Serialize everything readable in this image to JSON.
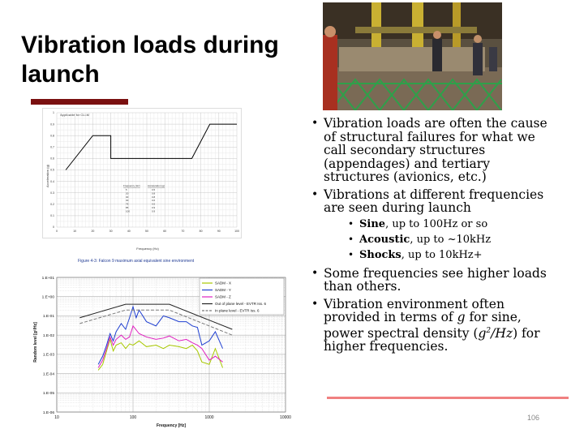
{
  "slide": {
    "title": "Vibration loads during launch",
    "page_number": "106"
  },
  "bullets": [
    {
      "text": "Vibration loads are often the cause of structural failures for what we call secondary structures (appendages) and tertiary structures (avionics, etc.)"
    },
    {
      "text": "Vibrations at different frequencies are seen during launch",
      "sub": [
        {
          "bold": "Sine",
          "rest": ", up to 100Hz or so"
        },
        {
          "bold": "Acoustic",
          "rest": ", up to ~10kHz"
        },
        {
          "bold": "Shocks",
          "rest": ", up to 10kHz+"
        }
      ]
    },
    {
      "text": "Some frequencies see higher loads than others."
    },
    {
      "pre": "Vibration environment often provided in terms of ",
      "g": "g",
      "mid": " for sine, power spectral density (",
      "psd_g": "g",
      "psd_sup": "2",
      "psd_rest": "/Hz",
      "post": ") for higher frequencies."
    }
  ],
  "figure1": {
    "caption": "Figure 4-3: Falcon 9 maximum axial equivalent sine environment",
    "chart_data": {
      "type": "line",
      "annotation": "Applicable for CLLM",
      "xlabel": "Frequency (Hz)",
      "ylabel": "Acceleration (g)",
      "x_ticks": [
        "0",
        "10",
        "20",
        "30",
        "40",
        "50",
        "60",
        "70",
        "80",
        "90",
        "100"
      ],
      "y_ticks": [
        "0",
        "0.1",
        "0.2",
        "0.3",
        "0.4",
        "0.5",
        "0.6",
        "0.7",
        "0.8",
        "0.9",
        "1"
      ],
      "xlim": [
        0,
        100
      ],
      "ylim": [
        0,
        1
      ],
      "series": [
        {
          "x": [
            5,
            20,
            30,
            30,
            75,
            85,
            100
          ],
          "y": [
            0.5,
            0.8,
            0.8,
            0.6,
            0.6,
            0.9,
            0.9
          ]
        }
      ],
      "table": {
        "headers": [
          "Frequency (Hz)",
          "Acceleration (g)"
        ],
        "rows": [
          [
            "5",
            "0.5"
          ],
          [
            "20",
            "0.8"
          ],
          [
            "30",
            "0.8"
          ],
          [
            "30",
            "0.6"
          ],
          [
            "75",
            "0.6"
          ],
          [
            "85",
            "0.9"
          ],
          [
            "100",
            "0.9"
          ]
        ]
      }
    }
  },
  "figure2": {
    "chart_data": {
      "type": "line",
      "xlabel": "Frequency [Hz]",
      "ylabel": "Random level [g²/Hz]",
      "x_scale": "log",
      "y_scale": "log",
      "xlim": [
        10,
        10000
      ],
      "ylim": [
        1e-06,
        10
      ],
      "x_ticks": [
        "10",
        "100",
        "1000",
        "10000"
      ],
      "y_ticks": [
        "1.E+01",
        "1.E+00",
        "1.E-01",
        "1.E-02",
        "1.E-03",
        "1.E-04",
        "1.E-05",
        "1.E-06"
      ],
      "legend_position": "top-right",
      "series": [
        {
          "name": "SADM - X",
          "color": "#a8c800",
          "style": "solid",
          "x": [
            35,
            40,
            45,
            50,
            55,
            60,
            70,
            80,
            90,
            100,
            120,
            150,
            200,
            250,
            300,
            400,
            500,
            600,
            700,
            800,
            1000,
            1200,
            1500
          ],
          "y": [
            0.00015,
            0.0003,
            0.0015,
            0.006,
            0.0015,
            0.003,
            0.004,
            0.002,
            0.0035,
            0.003,
            0.005,
            0.0025,
            0.003,
            0.002,
            0.003,
            0.0025,
            0.002,
            0.003,
            0.0015,
            0.0004,
            0.0003,
            0.002,
            0.0002
          ]
        },
        {
          "name": "SADM - Y",
          "color": "#1f3fd0",
          "style": "solid",
          "x": [
            35,
            40,
            45,
            50,
            55,
            60,
            70,
            80,
            90,
            100,
            110,
            120,
            150,
            200,
            250,
            300,
            400,
            500,
            600,
            700,
            800,
            1000,
            1200,
            1500
          ],
          "y": [
            0.0003,
            0.0008,
            0.003,
            0.012,
            0.005,
            0.015,
            0.04,
            0.02,
            0.08,
            0.3,
            0.08,
            0.2,
            0.05,
            0.03,
            0.1,
            0.08,
            0.05,
            0.05,
            0.03,
            0.025,
            0.003,
            0.005,
            0.015,
            0.002
          ]
        },
        {
          "name": "SADM - Z",
          "color": "#e020c0",
          "style": "solid",
          "x": [
            35,
            40,
            45,
            50,
            55,
            60,
            70,
            80,
            90,
            100,
            120,
            150,
            200,
            250,
            300,
            400,
            500,
            600,
            700,
            800,
            1000,
            1200,
            1500
          ],
          "y": [
            0.0002,
            0.0005,
            0.002,
            0.008,
            0.003,
            0.006,
            0.01,
            0.006,
            0.008,
            0.03,
            0.012,
            0.008,
            0.006,
            0.007,
            0.009,
            0.005,
            0.006,
            0.004,
            0.003,
            0.002,
            0.0005,
            0.0008,
            0.0004
          ]
        },
        {
          "name": "Out of plane level - EVTR Iss. 6",
          "color": "#222222",
          "style": "solid",
          "x": [
            20,
            80,
            300,
            2000
          ],
          "y": [
            0.08,
            0.4,
            0.4,
            0.02
          ]
        },
        {
          "name": "In plane level - EVTR Iss. 6",
          "color": "#777777",
          "style": "dashed",
          "x": [
            20,
            80,
            300,
            2000
          ],
          "y": [
            0.04,
            0.2,
            0.2,
            0.01
          ]
        }
      ]
    }
  }
}
